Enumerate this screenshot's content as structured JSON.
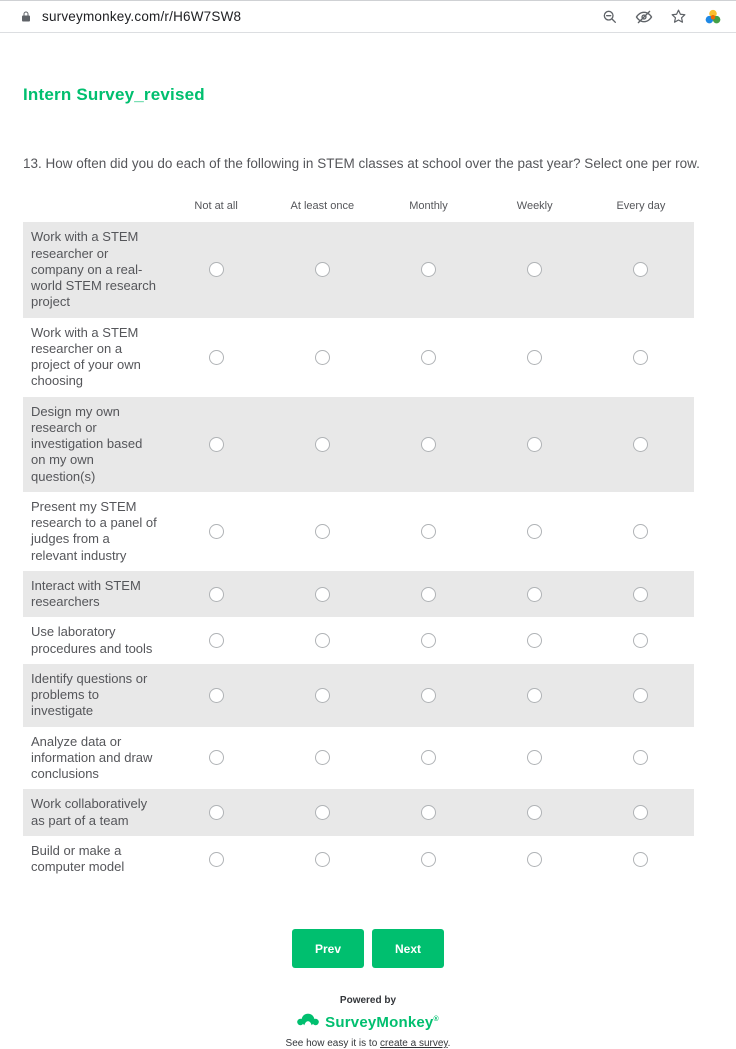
{
  "browser": {
    "url": "surveymonkey.com/r/H6W7SW8",
    "icons": [
      "lock-icon",
      "zoom-out-icon",
      "eye-off-icon",
      "star-icon",
      "extension-icon"
    ]
  },
  "survey": {
    "title": "Intern Survey_revised",
    "question": "13. How often did you do each of the following in STEM classes at school over the past year? Select one per row.",
    "matrix": {
      "columns": [
        "Not at all",
        "At least once",
        "Monthly",
        "Weekly",
        "Every day"
      ],
      "rows": [
        "Work with a STEM researcher or company on a real-world STEM research project",
        "Work with a STEM researcher on a project of your own choosing",
        "Design my own research or investigation based on my own question(s)",
        "Present my STEM research to a panel of judges from a relevant industry",
        "Interact with STEM researchers",
        "Use laboratory procedures and tools",
        "Identify questions or problems to investigate",
        "Analyze data or information and draw conclusions",
        "Work collaboratively as part of a team",
        "Build or make a computer model"
      ],
      "selected": null
    },
    "buttons": {
      "prev": "Prev",
      "next": "Next"
    },
    "footer": {
      "powered_by": "Powered by",
      "brand": "SurveyMonkey",
      "tagline_prefix": "See how easy it is to ",
      "tagline_link": "create a survey",
      "tagline_suffix": "."
    },
    "colors": {
      "green": "#00BF6F",
      "row_alt": "#e8e8e8",
      "text": "#55565A"
    }
  }
}
